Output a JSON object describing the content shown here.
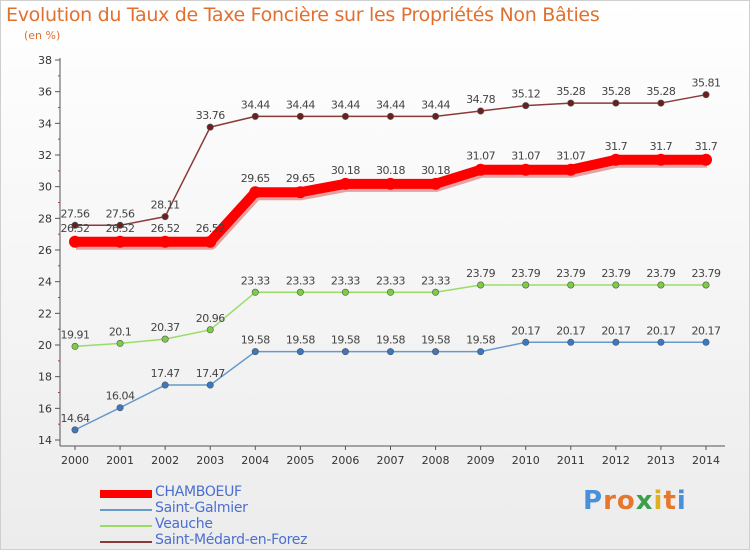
{
  "title": "Evolution du Taux de Taxe Foncière sur les Propriétés Non Bâties",
  "subtitle": "(en %)",
  "brand": {
    "text": "Proxiti",
    "colors": [
      "#4a90d9",
      "#e8772e",
      "#e8772e",
      "#3aa04a",
      "#e0b020",
      "#e8772e",
      "#4a90d9"
    ]
  },
  "chart_data": {
    "type": "line",
    "title": "Evolution du Taux de Taxe Foncière sur les Propriétés Non Bâties",
    "ylabel": "(en %)",
    "xlabel": "",
    "ylim": [
      14,
      38
    ],
    "yticks": [
      14,
      16,
      18,
      20,
      22,
      24,
      26,
      28,
      30,
      32,
      34,
      36,
      38
    ],
    "x": [
      "2000",
      "2001",
      "2002",
      "2003",
      "2004",
      "2005",
      "2006",
      "2007",
      "2008",
      "2009",
      "2010",
      "2011",
      "2012",
      "2013",
      "2014"
    ],
    "series": [
      {
        "name": "Saint-Médard-en-Forez",
        "color": "#8b3a3a",
        "marker": "#6b2020",
        "values": [
          27.56,
          27.56,
          28.11,
          33.76,
          34.44,
          34.44,
          34.44,
          34.44,
          34.44,
          34.78,
          35.12,
          35.28,
          35.28,
          35.28,
          35.81
        ],
        "labels": [
          "27.56",
          "27.56",
          "28.11",
          "33.76",
          "34.44",
          "34.44",
          "34.44",
          "34.44",
          "34.44",
          "34.78",
          "35.12",
          "35.28",
          "35.28",
          "35.28",
          "35.81"
        ]
      },
      {
        "name": "CHAMBOEUF",
        "color": "#ff0000",
        "marker": "#ff0000",
        "values": [
          26.52,
          26.52,
          26.52,
          26.52,
          29.65,
          29.65,
          30.18,
          30.18,
          30.18,
          31.07,
          31.07,
          31.07,
          31.7,
          31.7,
          31.7
        ],
        "labels": [
          "26.52",
          "26.52",
          "26.52",
          "26.52",
          "29.65",
          "29.65",
          "30.18",
          "30.18",
          "30.18",
          "31.07",
          "31.07",
          "31.07",
          "31.7",
          "31.7",
          "31.7"
        ]
      },
      {
        "name": "Veauche",
        "color": "#99dd66",
        "marker": "#7ccc44",
        "values": [
          19.91,
          20.1,
          20.37,
          20.96,
          23.33,
          23.33,
          23.33,
          23.33,
          23.33,
          23.79,
          23.79,
          23.79,
          23.79,
          23.79,
          23.79
        ],
        "labels": [
          "19.91",
          "20.1",
          "20.37",
          "20.96",
          "23.33",
          "23.33",
          "23.33",
          "23.33",
          "23.33",
          "23.79",
          "23.79",
          "23.79",
          "23.79",
          "23.79",
          "23.79"
        ]
      },
      {
        "name": "Saint-Galmier",
        "color": "#6699cc",
        "marker": "#3a78c2",
        "values": [
          14.64,
          16.04,
          17.47,
          17.47,
          19.58,
          19.58,
          19.58,
          19.58,
          19.58,
          19.58,
          20.17,
          20.17,
          20.17,
          20.17,
          20.17
        ],
        "labels": [
          "14.64",
          "16.04",
          "17.47",
          "17.47",
          "19.58",
          "19.58",
          "19.58",
          "19.58",
          "19.58",
          "19.58",
          "20.17",
          "20.17",
          "20.17",
          "20.17",
          "20.17"
        ]
      }
    ],
    "legend": [
      "CHAMBOEUF",
      "Saint-Galmier",
      "Veauche",
      "Saint-Médard-en-Forez"
    ],
    "legend_position": "bottom-left",
    "grid": false
  }
}
